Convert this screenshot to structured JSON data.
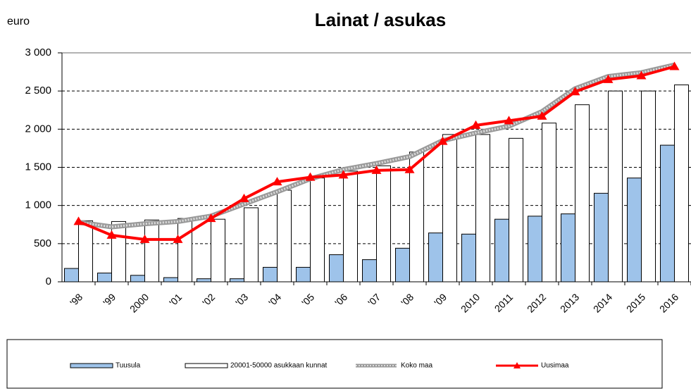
{
  "chart_data": {
    "type": "bar_line",
    "title": "Lainat / asukas",
    "y_label": "euro",
    "categories": [
      "'98",
      "'99",
      "2000",
      "'01",
      "'02",
      "'03",
      "'04",
      "'05",
      "'06",
      "'07",
      "'08",
      "'09",
      "2010",
      "2011",
      "2012",
      "2013",
      "2014",
      "2015",
      "2016"
    ],
    "series": [
      {
        "name": "Tuusula",
        "kind": "bar",
        "color": "#9ec3ea",
        "values": [
          175,
          115,
          85,
          55,
          40,
          40,
          190,
          190,
          355,
          290,
          440,
          640,
          625,
          820,
          860,
          890,
          1160,
          1360,
          1790
        ]
      },
      {
        "name": "20001-50000 asukkaan kunnat",
        "kind": "bar",
        "color": "#ffffff",
        "values": [
          800,
          790,
          810,
          830,
          820,
          970,
          1200,
          1360,
          1450,
          1520,
          1700,
          1930,
          1930,
          1880,
          2080,
          2320,
          2500,
          2500,
          2580
        ]
      },
      {
        "name": "Koko maa",
        "kind": "line",
        "color": "#999999",
        "values": [
          780,
          720,
          760,
          790,
          860,
          1020,
          1180,
          1350,
          1470,
          1550,
          1640,
          1850,
          1950,
          2040,
          2230,
          2530,
          2690,
          2740,
          2840
        ]
      },
      {
        "name": "Uusimaa",
        "kind": "line",
        "marker": "triangle",
        "color": "#ff0000",
        "values": [
          790,
          610,
          555,
          555,
          830,
          1090,
          1310,
          1370,
          1400,
          1460,
          1470,
          1840,
          2050,
          2110,
          2170,
          2490,
          2650,
          2700,
          2820
        ]
      }
    ],
    "ylim": [
      0,
      3000
    ],
    "yticks": [
      0,
      500,
      {
        "value": 1000,
        "label": "1 000"
      },
      {
        "value": 1500,
        "label": "1 500"
      },
      {
        "value": 2000,
        "label": "2 000"
      },
      {
        "value": 2500,
        "label": "2 500"
      },
      {
        "value": 3000,
        "label": "3 000"
      }
    ],
    "grid": true,
    "legend": "bottom"
  }
}
